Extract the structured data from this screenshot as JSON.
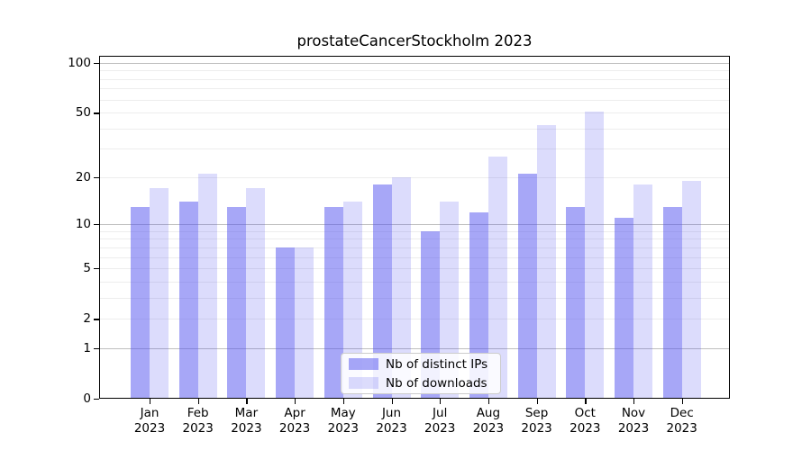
{
  "chart_data": {
    "type": "bar",
    "title": "prostateCancerStockholm 2023",
    "categories": [
      "Jan",
      "Feb",
      "Mar",
      "Apr",
      "May",
      "Jun",
      "Jul",
      "Aug",
      "Sep",
      "Oct",
      "Nov",
      "Dec"
    ],
    "year_label": "2023",
    "series": [
      {
        "name": "Nb of distinct IPs",
        "color": "rgba(80,80,240,0.5)",
        "values": [
          13,
          14,
          13,
          7,
          13,
          18,
          9,
          12,
          21,
          13,
          11,
          13
        ]
      },
      {
        "name": "Nb of downloads",
        "color": "rgba(80,80,240,0.2)",
        "values": [
          17,
          21,
          17,
          7,
          14,
          20,
          14,
          27,
          42,
          51,
          18,
          19
        ]
      }
    ],
    "yscale": "log1p",
    "ylim": [
      0,
      110
    ],
    "ytick_labels": [
      100,
      50,
      20,
      10,
      5,
      2,
      1,
      0
    ],
    "major_gridlines": [
      1,
      10,
      100
    ],
    "minor_gridlines": [
      2,
      3,
      4,
      5,
      6,
      7,
      8,
      9,
      20,
      30,
      40,
      50,
      60,
      70,
      80,
      90
    ],
    "grid": true,
    "legend_position": "lower center",
    "background_color": "#ffffff",
    "axis_color": "#000000",
    "major_grid_color": "#bfbfbf",
    "minor_grid_color": "#ededed"
  }
}
